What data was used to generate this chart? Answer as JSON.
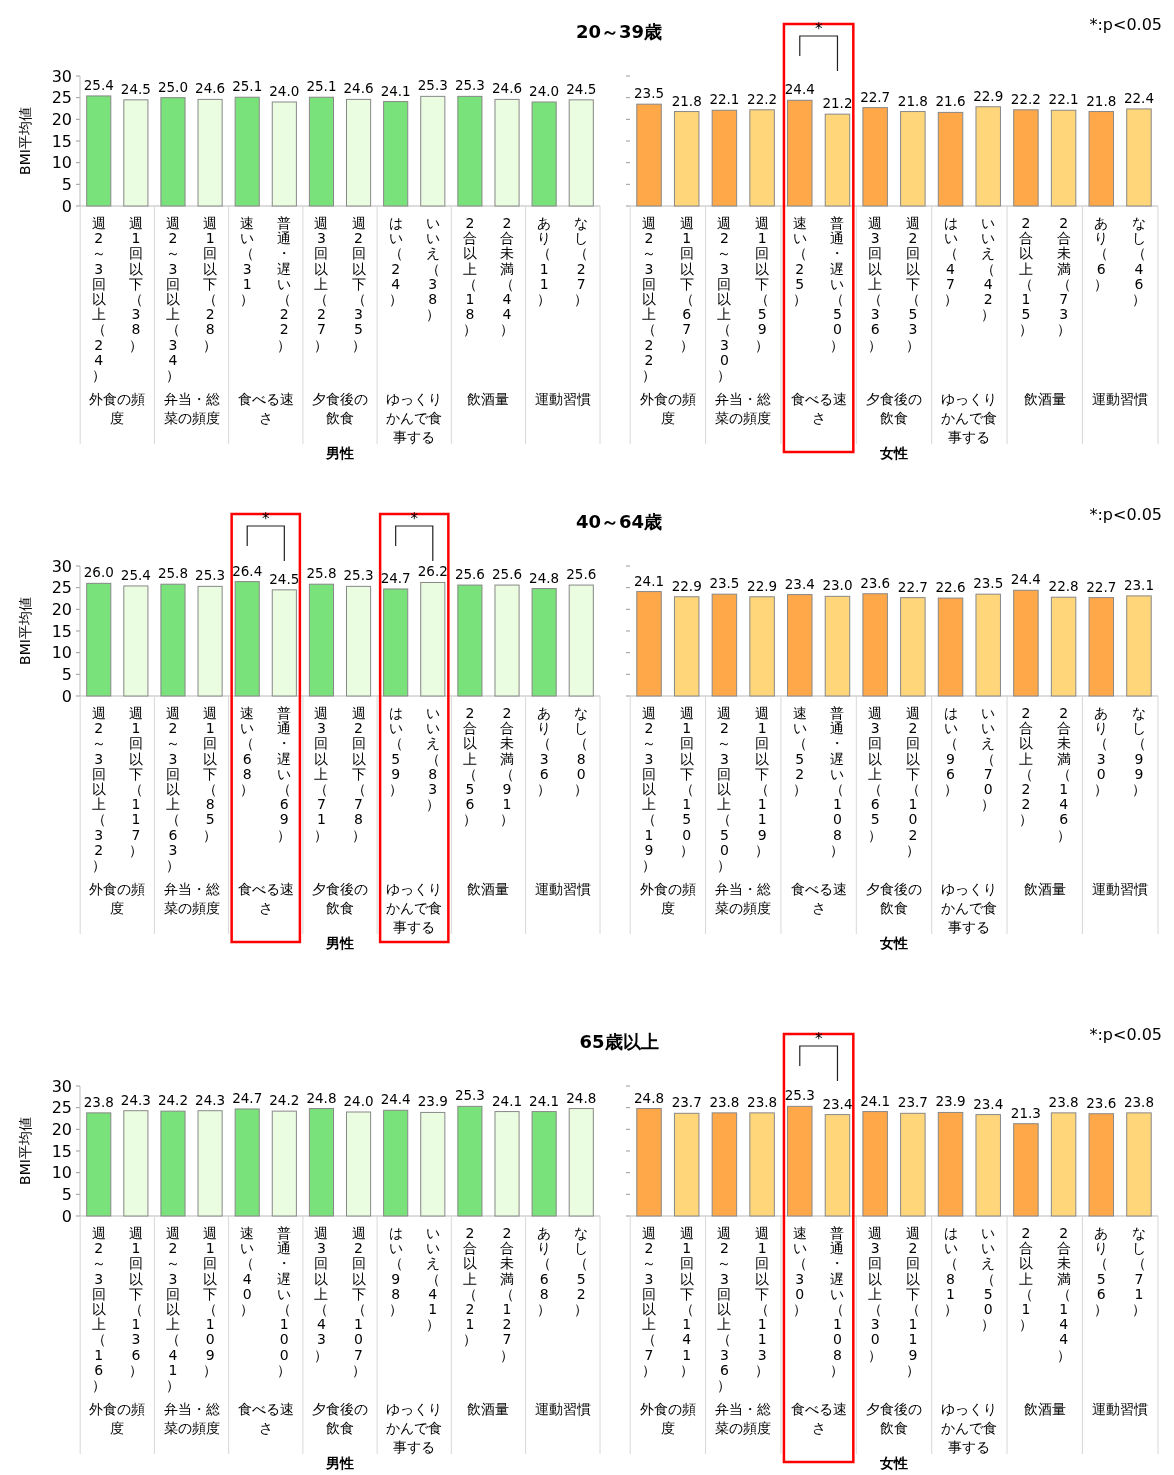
{
  "chart_data": [
    {
      "type": "bar",
      "title": "20～39歳",
      "ylabel": "BMI平均値",
      "xlabel": "男性",
      "ylim": [
        0,
        30
      ],
      "yticks": [
        0,
        5,
        10,
        15,
        20,
        25,
        30
      ],
      "categories": [
        "週2～3回以上（24）",
        "週1回以下（38）",
        "週2～3回以上（34）",
        "週1回以下（28）",
        "速い（31）",
        "普通・遅い（22）",
        "週3回以上（27）",
        "週2回以下（35）",
        "はい（24）",
        "いいえ（38）",
        "2合以上（18）",
        "2合未満（44）",
        "あり（11）",
        "なし（27）"
      ],
      "values": [
        25.4,
        24.5,
        25.0,
        24.6,
        25.1,
        24.0,
        25.1,
        24.6,
        24.1,
        25.3,
        25.3,
        24.6,
        24.0,
        24.5
      ],
      "value_labels": [
        "25.4",
        "24.5",
        "25.0",
        "24.6",
        "25.1",
        "24.0",
        "25.1",
        "24.6",
        "24.1",
        "25.3",
        "25.3",
        "24.6",
        "24.0",
        "24.5"
      ],
      "colors": [
        "#7ae27a",
        "#eafde0",
        "#7ae27a",
        "#eafde0",
        "#7ae27a",
        "#eafde0",
        "#7ae27a",
        "#eafde0",
        "#7ae27a",
        "#eafde0",
        "#7ae27a",
        "#eafde0",
        "#7ae27a",
        "#eafde0"
      ],
      "annotations": [
        "外食の頻度",
        "弁当・総菜の頻度",
        "食べる速さ",
        "夕食後の飲食",
        "ゆっくりかんで食事する",
        "飲酒量",
        "運動習慣"
      ]
    },
    {
      "type": "bar",
      "subtitle": "*:p<0.05",
      "xlabel": "女性",
      "ylim": [
        0,
        30
      ],
      "yticks": [
        0,
        5,
        10,
        15,
        20,
        25,
        30
      ],
      "tick_labels": "x",
      "categories": [
        "週2～3回以上（22）",
        "週1回以下（67）",
        "週2～3回以上（30）",
        "週1回以下（59）",
        "速い（25）",
        "普通・遅い（50）",
        "週3回以上（36）",
        "週2回以下（53）",
        "はい（47）",
        "いいえ（42）",
        "2合以上（15）",
        "2合未満（73）",
        "あり（6）",
        "なし（46）"
      ],
      "values": [
        23.5,
        21.8,
        22.1,
        22.2,
        24.4,
        21.2,
        22.7,
        21.8,
        21.6,
        22.9,
        22.2,
        22.1,
        21.8,
        22.4
      ],
      "value_labels": [
        "23.5",
        "21.8",
        "22.1",
        "22.2",
        "24.4",
        "21.2",
        "22.7",
        "21.8",
        "21.6",
        "22.9",
        "22.2",
        "22.1",
        "21.8",
        "22.4"
      ],
      "colors": [
        "#ffa84a",
        "#ffd67a",
        "#ffa84a",
        "#ffd67a",
        "#ffa84a",
        "#ffd67a",
        "#ffa84a",
        "#ffd67a",
        "#ffa84a",
        "#ffd67a",
        "#ffa84a",
        "#ffd67a",
        "#ffa84a",
        "#ffd67a"
      ],
      "annotations": [
        "外食の頻度",
        "弁当・総菜の頻度",
        "食べる速さ",
        "*",
        "夕食後の飲食",
        "ゆっくりかんで食事する",
        "飲酒量",
        "運動習慣"
      ]
    },
    {
      "type": "bar",
      "title": "40～64歳",
      "ylabel": "BMI平均値",
      "xlabel": "男性",
      "ylim": [
        0,
        30
      ],
      "yticks": [
        0,
        5,
        10,
        15,
        20,
        25,
        30
      ],
      "categories": [
        "週2～3回以上（32）",
        "週1回以下（117）",
        "週2～3回以上（63）",
        "週1回以下（85）",
        "速い（68）",
        "普通・遅い（69）",
        "週3回以上（71）",
        "週2回以下（78）",
        "はい（59）",
        "いいえ（83）",
        "2合以上（56）",
        "2合未満（91）",
        "あり（36）",
        "なし（80）"
      ],
      "values": [
        26.0,
        25.4,
        25.8,
        25.3,
        26.4,
        24.5,
        25.8,
        25.3,
        24.7,
        26.2,
        25.6,
        25.6,
        24.8,
        25.6
      ],
      "value_labels": [
        "26.0",
        "25.4",
        "25.8",
        "25.3",
        "26.4",
        "24.5",
        "25.8",
        "25.3",
        "24.7",
        "26.2",
        "25.6",
        "25.6",
        "24.8",
        "25.6"
      ],
      "colors": [
        "#7ae27a",
        "#eafde0",
        "#7ae27a",
        "#eafde0",
        "#7ae27a",
        "#eafde0",
        "#7ae27a",
        "#eafde0",
        "#7ae27a",
        "#eafde0",
        "#7ae27a",
        "#eafde0",
        "#7ae27a",
        "#eafde0"
      ],
      "annotations": [
        "外食の頻度",
        "弁当・総菜の頻度",
        "食べる速さ",
        "*",
        "夕食後の飲食",
        "ゆっくりかんで食事する",
        "*",
        "飲酒量",
        "運動習慣"
      ]
    },
    {
      "type": "bar",
      "subtitle": "*:p<0.05",
      "xlabel": "女性",
      "ylim": [
        0,
        30
      ],
      "yticks": [
        0,
        5,
        10,
        15,
        20,
        25,
        30
      ],
      "tick_labels": "x",
      "categories": [
        "週2～3回以上（19）",
        "週1回以下（150）",
        "週2～3回以上（50）",
        "週1回以下（119）",
        "速い（52）",
        "普通・遅い（108）",
        "週3回以上（65）",
        "週2回以下（102）",
        "はい（96）",
        "いいえ（70）",
        "2合以上（22）",
        "2合未満（146）",
        "あり（30）",
        "なし（99）"
      ],
      "values": [
        24.1,
        22.9,
        23.5,
        22.9,
        23.4,
        23.0,
        23.6,
        22.7,
        22.6,
        23.5,
        24.4,
        22.8,
        22.7,
        23.1
      ],
      "value_labels": [
        "24.1",
        "22.9",
        "23.5",
        "22.9",
        "23.4",
        "23.0",
        "23.6",
        "22.7",
        "22.6",
        "23.5",
        "24.4",
        "22.8",
        "22.7",
        "23.1"
      ],
      "colors": [
        "#ffa84a",
        "#ffd67a",
        "#ffa84a",
        "#ffd67a",
        "#ffa84a",
        "#ffd67a",
        "#ffa84a",
        "#ffd67a",
        "#ffa84a",
        "#ffd67a",
        "#ffa84a",
        "#ffd67a",
        "#ffa84a",
        "#ffd67a"
      ],
      "annotations": [
        "外食の頻度",
        "弁当・総菜の頻度",
        "食べる速さ",
        "夕食後の飲食",
        "ゆっくりかんで食事する",
        "飲酒量",
        "運動習慣"
      ]
    },
    {
      "type": "bar",
      "title": "65歳以上",
      "ylabel": "BMI平均値",
      "xlabel": "男性",
      "ylim": [
        0,
        30
      ],
      "yticks": [
        0,
        5,
        10,
        15,
        20,
        25,
        30
      ],
      "categories": [
        "週2～3回以上（16）",
        "週1回以下（136）",
        "週2～3回以上（41）",
        "週1回以下（109）",
        "速い（40）",
        "普通・遅い（100）",
        "週3回以上（43）",
        "週2回以下（107）",
        "はい（98）",
        "いいえ（41）",
        "2合以上（21）",
        "2合未満（127）",
        "あり（68）",
        "なし（52）"
      ],
      "values": [
        23.8,
        24.3,
        24.2,
        24.3,
        24.7,
        24.2,
        24.8,
        24.0,
        24.4,
        23.9,
        25.3,
        24.1,
        24.1,
        24.8
      ],
      "value_labels": [
        "23.8",
        "24.3",
        "24.2",
        "24.3",
        "24.7",
        "24.2",
        "24.8",
        "24.0",
        "24.4",
        "23.9",
        "25.3",
        "24.1",
        "24.1",
        "24.8"
      ],
      "colors": [
        "#7ae27a",
        "#eafde0",
        "#7ae27a",
        "#eafde0",
        "#7ae27a",
        "#eafde0",
        "#7ae27a",
        "#eafde0",
        "#7ae27a",
        "#eafde0",
        "#7ae27a",
        "#eafde0",
        "#7ae27a",
        "#eafde0"
      ],
      "annotations": [
        "外食の頻度",
        "弁当・総菜の頻度",
        "食べる速さ",
        "夕食後の飲食",
        "ゆっくりかんで食事する",
        "飲酒量",
        "運動習慣"
      ]
    },
    {
      "type": "bar",
      "subtitle": "*:p<0.05",
      "xlabel": "女性",
      "ylim": [
        0,
        30
      ],
      "yticks": [
        0,
        5,
        10,
        15,
        20,
        25,
        30
      ],
      "tick_labels": "x",
      "categories": [
        "週2～3回以上（7）",
        "週1回以下（141）",
        "週2～3回以上（36）",
        "週1回以下（113）",
        "速い（30）",
        "普通・遅い（108）",
        "週3回以上（30）",
        "週2回以下（119）",
        "はい（81）",
        "いいえ（50）",
        "2合以上（1）",
        "2合未満（144）",
        "あり（56）",
        "なし（71）"
      ],
      "values": [
        24.8,
        23.7,
        23.8,
        23.8,
        25.3,
        23.4,
        24.1,
        23.7,
        23.9,
        23.4,
        21.3,
        23.8,
        23.6,
        23.8
      ],
      "value_labels": [
        "24.8",
        "23.7",
        "23.8",
        "23.8",
        "25.3",
        "23.4",
        "24.1",
        "23.7",
        "23.9",
        "23.4",
        "21.3",
        "23.8",
        "23.6",
        "23.8"
      ],
      "colors": [
        "#ffa84a",
        "#ffd67a",
        "#ffa84a",
        "#ffd67a",
        "#ffa84a",
        "#ffd67a",
        "#ffa84a",
        "#ffd67a",
        "#ffa84a",
        "#ffd67a",
        "#ffa84a",
        "#ffd67a",
        "#ffa84a",
        "#ffd67a"
      ],
      "annotations": [
        "外食の頻度",
        "弁当・総菜の頻度",
        "食べる速さ",
        "*",
        "夕食後の飲食",
        "ゆっくりかんで食事する",
        "飲酒量",
        "運動習慣"
      ]
    }
  ]
}
